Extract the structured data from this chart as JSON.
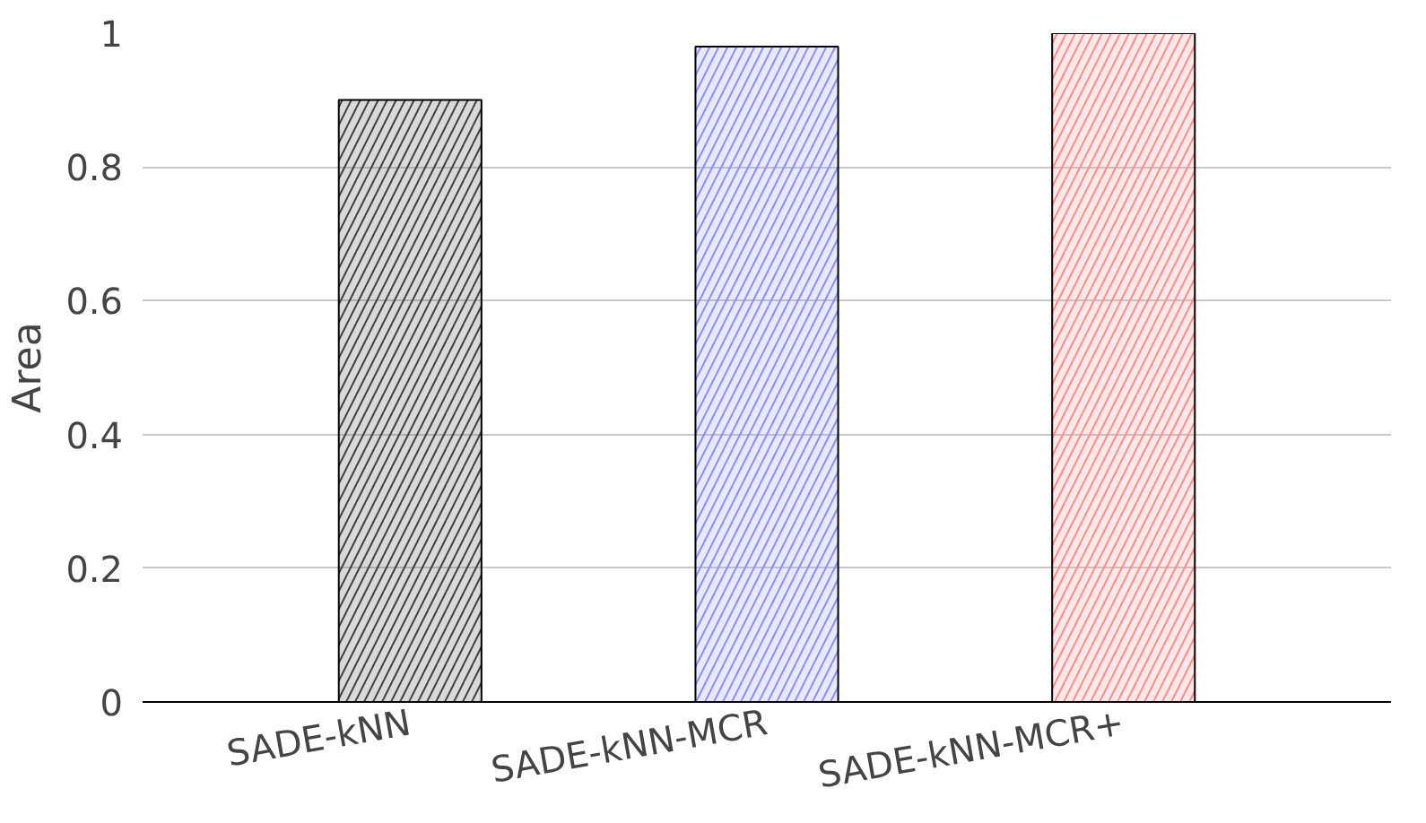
{
  "chart_data": {
    "type": "bar",
    "ylabel": "Area",
    "categories": [
      "SADE-kNN",
      "SADE-kNN-MCR",
      "SADE-kNN-MCR+"
    ],
    "values": [
      0.9,
      0.98,
      1.0
    ],
    "colors": [
      "#404040",
      "#8c8cff",
      "#ff8c8c"
    ],
    "ylim": [
      0,
      1
    ],
    "yticks": [
      0,
      0.2,
      0.4,
      0.6,
      0.8,
      1
    ],
    "grid": "y"
  }
}
